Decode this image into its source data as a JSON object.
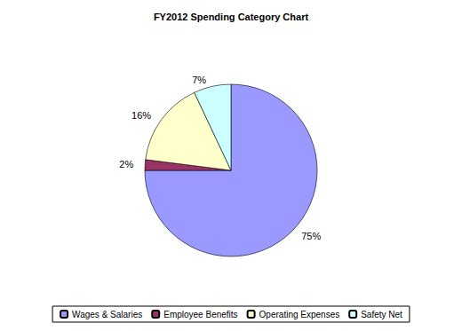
{
  "chart_data": {
    "type": "pie",
    "title": "FY2012 Spending Category Chart",
    "categories": [
      "Wages & Salaries",
      "Employee Benefits",
      "Operating Expenses",
      "Safety Net"
    ],
    "values": [
      75,
      2,
      16,
      7
    ],
    "value_labels": [
      "75%",
      "2%",
      "16%",
      "7%"
    ],
    "colors": [
      "#9999ff",
      "#993366",
      "#ffffcc",
      "#ccffff"
    ],
    "data_labels": true,
    "legend": "bottom"
  }
}
